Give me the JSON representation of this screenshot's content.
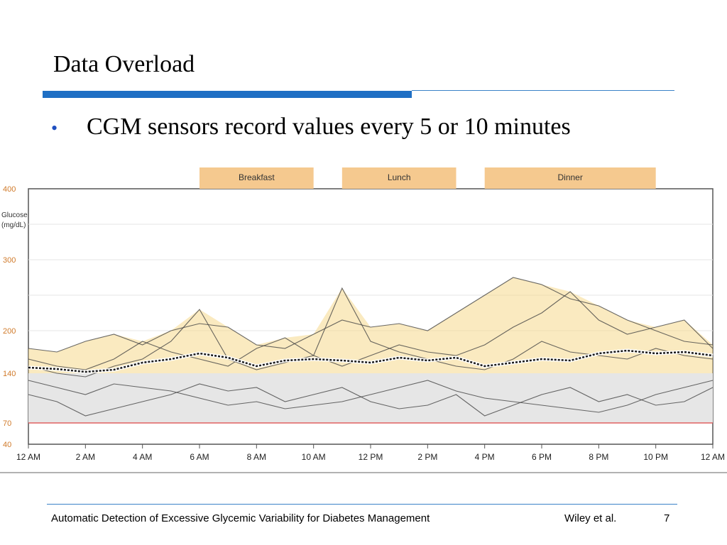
{
  "slide": {
    "title": "Data Overload",
    "bullet_symbol": "•",
    "bullet": "CGM sensors record values every 5 or 10 minutes",
    "footer_left": "Automatic Detection of Excessive Glycemic Variability for Diabetes Management",
    "footer_author": "Wiley et al.",
    "page_number": "7"
  },
  "colors": {
    "accent_blue": "#1f6fc4",
    "meal_band": "#f5c98f",
    "target_band": "#e6e6e6",
    "high_fill": "#f6d98c",
    "low_fill": "#f0c6c6",
    "median_line": "#1a1a1a",
    "low_threshold_line": "#e06060"
  },
  "chart_data": {
    "type": "line",
    "ylabel": "Glucose\n(mg/dL)",
    "ylim": [
      40,
      400
    ],
    "y_ticks": [
      {
        "value": 400,
        "label": "400"
      },
      {
        "value": 300,
        "label": "300"
      },
      {
        "value": 200,
        "label": "200"
      },
      {
        "value": 140,
        "label": "140"
      },
      {
        "value": 70,
        "label": "70"
      },
      {
        "value": 40,
        "label": "40"
      }
    ],
    "x_ticks": [
      "12 AM",
      "2 AM",
      "4 AM",
      "6 AM",
      "8 AM",
      "10 AM",
      "12 PM",
      "2 PM",
      "4 PM",
      "6 PM",
      "8 PM",
      "10 PM",
      "12 AM"
    ],
    "xlim": [
      0,
      24
    ],
    "target_range": [
      70,
      140
    ],
    "low_threshold": 70,
    "meals": [
      {
        "label": "Breakfast",
        "start": 6.0,
        "end": 10.0
      },
      {
        "label": "Lunch",
        "start": 11.0,
        "end": 15.0
      },
      {
        "label": "Dinner",
        "start": 16.0,
        "end": 22.0
      }
    ],
    "series": [
      {
        "values": [
          [
            0,
            175
          ],
          [
            1,
            170
          ],
          [
            2,
            185
          ],
          [
            3,
            195
          ],
          [
            4,
            180
          ],
          [
            5,
            200
          ],
          [
            6,
            210
          ],
          [
            7,
            205
          ],
          [
            8,
            180
          ],
          [
            9,
            175
          ],
          [
            10,
            195
          ],
          [
            11,
            215
          ],
          [
            12,
            205
          ],
          [
            13,
            210
          ],
          [
            14,
            200
          ],
          [
            15,
            225
          ],
          [
            16,
            250
          ],
          [
            17,
            275
          ],
          [
            18,
            265
          ],
          [
            19,
            245
          ],
          [
            20,
            235
          ],
          [
            21,
            215
          ],
          [
            22,
            200
          ],
          [
            23,
            185
          ],
          [
            24,
            180
          ]
        ]
      },
      {
        "values": [
          [
            0,
            160
          ],
          [
            1,
            150
          ],
          [
            2,
            145
          ],
          [
            3,
            160
          ],
          [
            4,
            185
          ],
          [
            5,
            170
          ],
          [
            6,
            160
          ],
          [
            7,
            150
          ],
          [
            8,
            175
          ],
          [
            9,
            190
          ],
          [
            10,
            165
          ],
          [
            11,
            150
          ],
          [
            12,
            165
          ],
          [
            13,
            180
          ],
          [
            14,
            170
          ],
          [
            15,
            165
          ],
          [
            16,
            180
          ],
          [
            17,
            205
          ],
          [
            18,
            225
          ],
          [
            19,
            255
          ],
          [
            20,
            215
          ],
          [
            21,
            195
          ],
          [
            22,
            205
          ],
          [
            23,
            215
          ],
          [
            24,
            175
          ]
        ]
      },
      {
        "values": [
          [
            0,
            130
          ],
          [
            1,
            120
          ],
          [
            2,
            110
          ],
          [
            3,
            125
          ],
          [
            4,
            120
          ],
          [
            5,
            115
          ],
          [
            6,
            105
          ],
          [
            7,
            95
          ],
          [
            8,
            100
          ],
          [
            9,
            90
          ],
          [
            10,
            95
          ],
          [
            11,
            100
          ],
          [
            12,
            110
          ],
          [
            13,
            120
          ],
          [
            14,
            130
          ],
          [
            15,
            115
          ],
          [
            16,
            105
          ],
          [
            17,
            100
          ],
          [
            18,
            95
          ],
          [
            19,
            90
          ],
          [
            20,
            85
          ],
          [
            21,
            95
          ],
          [
            22,
            110
          ],
          [
            23,
            120
          ],
          [
            24,
            130
          ]
        ]
      },
      {
        "values": [
          [
            0,
            150
          ],
          [
            1,
            140
          ],
          [
            2,
            135
          ],
          [
            3,
            150
          ],
          [
            4,
            160
          ],
          [
            5,
            185
          ],
          [
            6,
            230
          ],
          [
            7,
            160
          ],
          [
            8,
            145
          ],
          [
            9,
            155
          ],
          [
            10,
            165
          ],
          [
            11,
            260
          ],
          [
            12,
            185
          ],
          [
            13,
            170
          ],
          [
            14,
            160
          ],
          [
            15,
            150
          ],
          [
            16,
            145
          ],
          [
            17,
            160
          ],
          [
            18,
            185
          ],
          [
            19,
            170
          ],
          [
            20,
            165
          ],
          [
            21,
            160
          ],
          [
            22,
            175
          ],
          [
            23,
            165
          ],
          [
            24,
            160
          ]
        ]
      },
      {
        "values": [
          [
            0,
            110
          ],
          [
            1,
            100
          ],
          [
            2,
            80
          ],
          [
            3,
            90
          ],
          [
            4,
            100
          ],
          [
            5,
            110
          ],
          [
            6,
            125
          ],
          [
            7,
            115
          ],
          [
            8,
            120
          ],
          [
            9,
            100
          ],
          [
            10,
            110
          ],
          [
            11,
            120
          ],
          [
            12,
            100
          ],
          [
            13,
            90
          ],
          [
            14,
            95
          ],
          [
            15,
            110
          ],
          [
            16,
            80
          ],
          [
            17,
            95
          ],
          [
            18,
            110
          ],
          [
            19,
            120
          ],
          [
            20,
            100
          ],
          [
            21,
            110
          ],
          [
            22,
            95
          ],
          [
            23,
            100
          ],
          [
            24,
            120
          ]
        ]
      }
    ],
    "median_line": [
      [
        0,
        148
      ],
      [
        1,
        146
      ],
      [
        2,
        142
      ],
      [
        3,
        145
      ],
      [
        4,
        155
      ],
      [
        5,
        160
      ],
      [
        6,
        168
      ],
      [
        7,
        162
      ],
      [
        8,
        150
      ],
      [
        9,
        158
      ],
      [
        10,
        160
      ],
      [
        11,
        158
      ],
      [
        12,
        155
      ],
      [
        13,
        162
      ],
      [
        14,
        158
      ],
      [
        15,
        162
      ],
      [
        16,
        150
      ],
      [
        17,
        155
      ],
      [
        18,
        160
      ],
      [
        19,
        158
      ],
      [
        20,
        168
      ],
      [
        21,
        172
      ],
      [
        22,
        168
      ],
      [
        23,
        170
      ],
      [
        24,
        165
      ]
    ]
  }
}
